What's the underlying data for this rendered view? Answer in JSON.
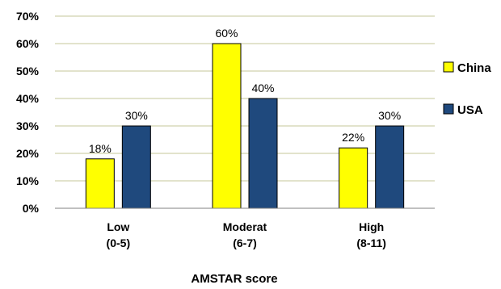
{
  "chart_data": {
    "type": "bar",
    "categories": [
      [
        "Low",
        "(0-5)"
      ],
      [
        "Moderat",
        "(6-7)"
      ],
      [
        "High",
        "(8-11)"
      ]
    ],
    "series": [
      {
        "name": "China",
        "values": [
          18,
          60,
          22
        ],
        "labels": [
          "18%",
          "60%",
          "22%"
        ],
        "color": "#ffff00"
      },
      {
        "name": "USA",
        "values": [
          30,
          40,
          30
        ],
        "labels": [
          "30%",
          "40%",
          "30%"
        ],
        "color": "#1f497d"
      }
    ],
    "ylim": [
      0,
      70
    ],
    "yticks": [
      0,
      10,
      20,
      30,
      40,
      50,
      60,
      70
    ],
    "ytick_labels": [
      "0%",
      "10%",
      "20%",
      "30%",
      "40%",
      "50%",
      "60%",
      "70%"
    ],
    "xlabel": "AMSTAR score",
    "ylabel": "",
    "grid": true,
    "legend": "right"
  }
}
